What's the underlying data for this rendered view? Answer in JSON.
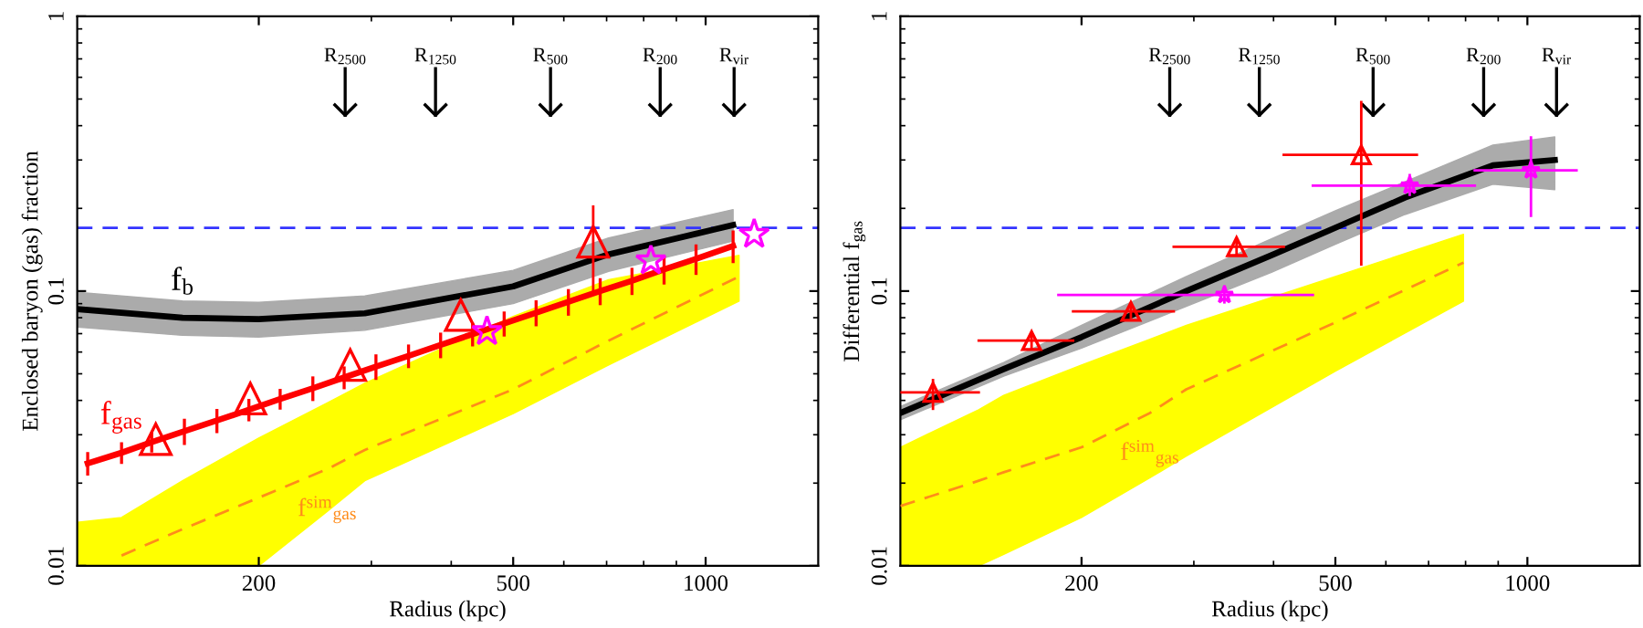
{
  "chart_data": [
    {
      "type": "line",
      "xlabel": "Radius (kpc)",
      "ylabel": "Enclosed baryon (gas) fraction",
      "log": "xy",
      "xlim": [
        104,
        1500
      ],
      "ylim": [
        0.01,
        1
      ],
      "xticks": [
        200,
        500,
        1000
      ],
      "yticks": [
        0.01,
        0.1,
        1
      ],
      "grid": false,
      "legend": false,
      "series": [
        {
          "name": "f$^{sim}$$_{gas}$",
          "color": "#ff8c1a",
          "line_style": "dashed",
          "x": [
            104,
            122,
            152,
            200,
            256,
            293,
            500,
            705,
            1128
          ],
          "values": [
            null,
            0.0109,
            0.0136,
            0.0177,
            0.0225,
            0.0264,
            0.0439,
            0.066,
            0.113
          ],
          "lower": [
            0.01,
            0.01,
            0.01,
            0.01,
            0.0158,
            0.0204,
            0.0358,
            0.0538,
            0.0919
          ],
          "upper": [
            0.0144,
            0.015,
            0.0204,
            0.0292,
            0.0392,
            0.0462,
            0.0809,
            0.11,
            0.135
          ]
        },
        {
          "name": "f$_{b}$",
          "color": "#000000",
          "x": [
            104,
            152,
            200,
            293,
            500,
            705,
            1104
          ],
          "values": [
            0.086,
            0.08,
            0.079,
            0.083,
            0.104,
            0.136,
            0.174
          ],
          "lower": [
            0.074,
            0.069,
            0.068,
            0.072,
            0.09,
            0.118,
            0.152
          ],
          "upper": [
            0.099,
            0.092,
            0.091,
            0.096,
            0.119,
            0.156,
            0.198
          ]
        },
        {
          "name": "f$_{gas}$",
          "color": "#ff0000",
          "x": [
            108,
            122,
            136,
            153,
            172,
            193,
            216,
            243,
            272,
            305,
            343,
            385,
            432,
            484,
            543,
            610,
            684,
            767,
            861,
            966,
            1104
          ],
          "values": [
            0.0236,
            0.0258,
            0.0282,
            0.0309,
            0.0338,
            0.037,
            0.0405,
            0.0443,
            0.0485,
            0.0531,
            0.0581,
            0.0637,
            0.0697,
            0.0762,
            0.0834,
            0.0914,
            0.1,
            0.109,
            0.12,
            0.131,
            0.146
          ],
          "errors": [
            0.002,
            0.002,
            0.002,
            0.003,
            0.003,
            0.003,
            0.003,
            0.004,
            0.004,
            0.005,
            0.005,
            0.006,
            0.006,
            0.007,
            0.008,
            0.009,
            0.01,
            0.011,
            0.013,
            0.015,
            0.018
          ]
        },
        {
          "type": "scatter",
          "color": "#ff0000",
          "marker": "triangle",
          "x": [
            138,
            194,
            278,
            414,
            667
          ],
          "values": [
            0.0289,
            0.0406,
            0.0538,
            0.0818,
            0.151
          ],
          "errors": [
            null,
            null,
            null,
            null,
            [
              0.0993,
              0.203
            ]
          ]
        },
        {
          "type": "scatter",
          "color": "#ff00ff",
          "marker": "star",
          "x": [
            455,
            821,
            1191
          ],
          "values": [
            0.0713,
            0.129,
            0.161
          ]
        }
      ],
      "ref_lines": [
        {
          "axis": "y",
          "value": 0.17,
          "color": "#3333ff",
          "line_style": "dashed"
        },
        {
          "axis": "x",
          "value": 273,
          "label": "R$_{2500}$",
          "color": "#000000"
        },
        {
          "axis": "x",
          "value": 378,
          "label": "R$_{1250}$",
          "color": "#000000"
        },
        {
          "axis": "x",
          "value": 572,
          "label": "R$_{500}$",
          "color": "#000000"
        },
        {
          "axis": "x",
          "value": 849,
          "label": "R$_{200}$",
          "color": "#000000"
        },
        {
          "axis": "x",
          "value": 1108,
          "label": "R$_{vir}$",
          "color": "#000000"
        }
      ]
    },
    {
      "type": "line",
      "xlabel": "Radius (kpc)",
      "ylabel": "Differential f$_{gas}$",
      "log": "xy",
      "xlim": [
        104,
        1500
      ],
      "ylim": [
        0.01,
        1
      ],
      "xticks": [
        200,
        500,
        1000
      ],
      "yticks": [
        0.01,
        0.1,
        1
      ],
      "grid": false,
      "legend": false,
      "series": [
        {
          "name": "f$^{sim}$$_{gas}$",
          "color": "#ff8c1a",
          "line_style": "dashed",
          "x": [
            104,
            138,
            151,
            200,
            256,
            292,
            500,
            794
          ],
          "values": [
            0.0165,
            0.0204,
            0.0219,
            0.027,
            0.036,
            0.0439,
            0.0769,
            0.127
          ],
          "lower": [
            0.01,
            0.01,
            0.011,
            0.015,
            0.0209,
            0.0251,
            0.0511,
            0.0919
          ],
          "upper": [
            0.027,
            0.037,
            0.0417,
            0.0538,
            0.0668,
            0.075,
            0.113,
            0.161
          ]
        },
        {
          "color": "#000000",
          "x": [
            104,
            151,
            200,
            292,
            397,
            500,
            643,
            883,
            1104
          ],
          "values": [
            0.036,
            0.052,
            0.068,
            0.1,
            0.135,
            0.17,
            0.219,
            0.287,
            0.3
          ],
          "lower": [
            0.034,
            0.049,
            0.062,
            0.088,
            0.117,
            0.148,
            0.19,
            0.245,
            0.234
          ],
          "upper": [
            0.038,
            0.055,
            0.075,
            0.113,
            0.155,
            0.196,
            0.25,
            0.34,
            0.364
          ]
        },
        {
          "type": "scatter",
          "color": "#ff0000",
          "marker": "triangle",
          "x": [
            117,
            167,
            239,
            350,
            549
          ],
          "values": [
            0.0428,
            0.066,
            0.0843,
            0.145,
            0.313
          ],
          "errors": [
            [
              0.0373,
              0.0474
            ],
            [
              0.0621,
              0.0702
            ],
            [
              0.0801,
              0.0896
            ],
            [
              0.136,
              0.155
            ],
            [
              0.125,
              0.487
            ]
          ],
          "xerrors": [
            [
              104,
              138
            ],
            [
              138,
              194
            ],
            [
              194,
              279
            ],
            [
              279,
              415
            ],
            [
              415,
              671
            ]
          ]
        },
        {
          "type": "scatter",
          "color": "#ff00ff",
          "marker": "star",
          "x": [
            335,
            654,
            1013
          ],
          "values": [
            0.0968,
            0.242,
            0.275
          ],
          "errors": [
            [
              0.091,
              0.104
            ],
            [
              0.224,
              0.264
            ],
            [
              0.188,
              0.362
            ]
          ],
          "xerrors": [
            [
              184,
              461
            ],
            [
              461,
              827
            ],
            [
              827,
              1194
            ]
          ]
        }
      ],
      "ref_lines": [
        {
          "axis": "y",
          "value": 0.17,
          "color": "#3333ff",
          "line_style": "dashed"
        },
        {
          "axis": "x",
          "value": 275,
          "label": "R$_{2500}$",
          "color": "#000000"
        },
        {
          "axis": "x",
          "value": 380,
          "label": "R$_{1250}$",
          "color": "#000000"
        },
        {
          "axis": "x",
          "value": 573,
          "label": "R$_{500}$",
          "color": "#000000"
        },
        {
          "axis": "x",
          "value": 854,
          "label": "R$_{200}$",
          "color": "#000000"
        },
        {
          "axis": "x",
          "value": 1111,
          "label": "R$_{vir}$",
          "color": "#000000"
        }
      ]
    }
  ]
}
